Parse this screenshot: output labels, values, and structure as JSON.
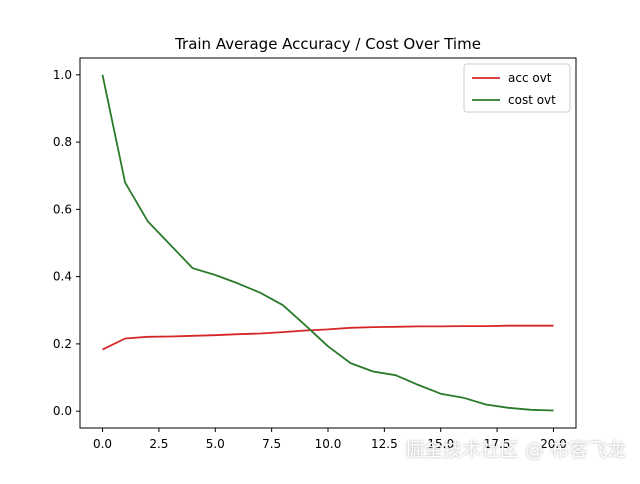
{
  "chart_data": {
    "type": "line",
    "title": "Train Average Accuracy / Cost Over Time",
    "xlabel": "",
    "ylabel": "",
    "xlim": [
      -1,
      21
    ],
    "ylim": [
      -0.05,
      1.05
    ],
    "xticks": [
      "0.0",
      "2.5",
      "5.0",
      "7.5",
      "10.0",
      "12.5",
      "15.0",
      "17.5",
      "20.0"
    ],
    "yticks": [
      "0.0",
      "0.2",
      "0.4",
      "0.6",
      "0.8",
      "1.0"
    ],
    "grid": false,
    "legend_position": "top-right",
    "x": [
      0,
      1,
      2,
      3,
      4,
      5,
      6,
      7,
      8,
      9,
      10,
      11,
      12,
      13,
      14,
      15,
      16,
      17,
      18,
      19,
      20
    ],
    "series": [
      {
        "name": "acc ovt",
        "color": "#d62728",
        "values": [
          0.183,
          0.216,
          0.221,
          0.222,
          0.224,
          0.226,
          0.229,
          0.231,
          0.235,
          0.24,
          0.243,
          0.248,
          0.25,
          0.251,
          0.252,
          0.252,
          0.253,
          0.253,
          0.254,
          0.254,
          0.254
        ]
      },
      {
        "name": "cost ovt",
        "color": "#2a7a2a",
        "values": [
          1.0,
          0.68,
          0.565,
          0.495,
          0.425,
          0.405,
          0.38,
          0.352,
          0.315,
          0.255,
          0.193,
          0.143,
          0.118,
          0.107,
          0.078,
          0.052,
          0.04,
          0.02,
          0.01,
          0.004,
          0.002
        ]
      }
    ]
  },
  "watermark": "掘金技术社区 @ 布客飞龙"
}
